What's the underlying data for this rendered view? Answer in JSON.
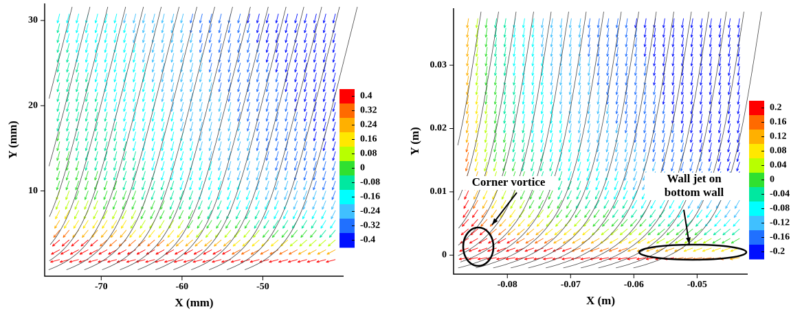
{
  "chart_data": [
    {
      "type": "vector",
      "xlabel": "X (mm)",
      "ylabel": "Y (mm)",
      "xlim": [
        -77,
        -40
      ],
      "xticks": [
        -70,
        -60,
        -50
      ],
      "ylim": [
        0,
        32
      ],
      "yticks": [
        10,
        20,
        30
      ],
      "colorbar": {
        "ticks": [
          0.4,
          0.32,
          0.24,
          0.16,
          0.08,
          0,
          -0.08,
          -0.16,
          -0.24,
          -0.32,
          -0.4
        ],
        "colors": [
          "#ff0000",
          "#ff6a00",
          "#ffb000",
          "#ffe800",
          "#b8ff00",
          "#30e030",
          "#00e8a0",
          "#00ffff",
          "#40c0ff",
          "#2070ff",
          "#0010ff"
        ]
      }
    },
    {
      "type": "vector",
      "xlabel": "X (m)",
      "ylabel": "Y (m)",
      "xlim": [
        -0.0885,
        -0.042
      ],
      "xticks": [
        -0.08,
        -0.07,
        -0.06,
        -0.05
      ],
      "ylim": [
        -0.003,
        0.039
      ],
      "yticks": [
        0,
        0.01,
        0.02,
        0.03
      ],
      "colorbar": {
        "ticks": [
          0.2,
          0.16,
          0.12,
          0.08,
          0.04,
          0,
          -0.04,
          -0.08,
          -0.12,
          -0.16,
          -0.2
        ],
        "colors": [
          "#ff0000",
          "#ff6a00",
          "#ffb000",
          "#ffe800",
          "#b8ff00",
          "#30e030",
          "#00e8a0",
          "#00ffff",
          "#40c0ff",
          "#2070ff",
          "#0010ff"
        ]
      },
      "annotations": [
        {
          "lines": [
            "Corner vortice"
          ]
        },
        {
          "lines": [
            "Wall jet on",
            "bottom wall"
          ]
        }
      ]
    }
  ]
}
